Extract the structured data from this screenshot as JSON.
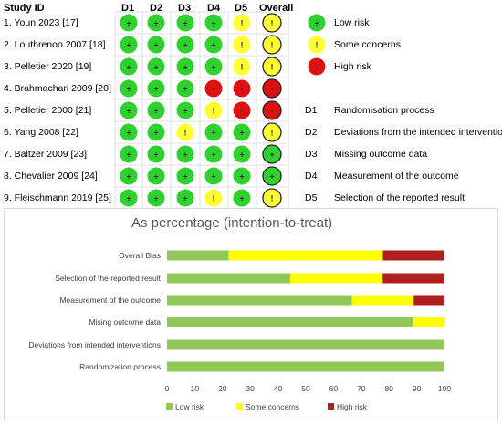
{
  "header": {
    "study_id": "Study ID",
    "domains": [
      "D1",
      "D2",
      "D3",
      "D4",
      "D5"
    ],
    "overall": "Overall"
  },
  "studies": [
    {
      "name": "1. Youn 2023 [17]",
      "judgements": [
        "low",
        "low",
        "low",
        "low",
        "some"
      ],
      "overall": "some"
    },
    {
      "name": "2. Louthrenoo 2007 [18]",
      "judgements": [
        "low",
        "low",
        "low",
        "low",
        "some"
      ],
      "overall": "some"
    },
    {
      "name": "3. Pelletier 2020 [19]",
      "judgements": [
        "low",
        "low",
        "low",
        "low",
        "some"
      ],
      "overall": "some"
    },
    {
      "name": "4. Brahmachari 2009 [20]",
      "judgements": [
        "low",
        "low",
        "low",
        "high",
        "high"
      ],
      "overall": "high"
    },
    {
      "name": "5. Pelletier 2000 [21]",
      "judgements": [
        "low",
        "low",
        "low",
        "some",
        "high"
      ],
      "overall": "high"
    },
    {
      "name": "6. Yang 2008 [22]",
      "judgements": [
        "low",
        "low",
        "some",
        "low",
        "low"
      ],
      "overall": "some"
    },
    {
      "name": "7. Baltzer 2009 [23]",
      "judgements": [
        "low",
        "low",
        "low",
        "low",
        "low"
      ],
      "overall": "low"
    },
    {
      "name": "8. Chevalier 2009 [24]",
      "judgements": [
        "low",
        "low",
        "low",
        "low",
        "low"
      ],
      "overall": "low"
    },
    {
      "name": "9. Fleischmann 2019 [25]",
      "judgements": [
        "low",
        "low",
        "low",
        "some",
        "low"
      ],
      "overall": "some"
    }
  ],
  "symbols": {
    "low": "+",
    "some": "!",
    "high": "-"
  },
  "colors": {
    "low": "#2ed12e",
    "some": "#ffff33",
    "high": "#dd1111",
    "bar_low": "#92c85a",
    "bar_some": "#ffff00",
    "bar_high": "#b01f1f"
  },
  "risk_legend": [
    {
      "key": "low",
      "label": "Low risk"
    },
    {
      "key": "some",
      "label": "Some concerns"
    },
    {
      "key": "high",
      "label": "High risk"
    }
  ],
  "domain_legend": [
    {
      "key": "D1",
      "label": "Randomisation process"
    },
    {
      "key": "D2",
      "label": "Deviations from the intended interventions"
    },
    {
      "key": "D3",
      "label": "Missing outcome data"
    },
    {
      "key": "D4",
      "label": "Measurement of the outcome"
    },
    {
      "key": "D5",
      "label": "Selection of the reported result"
    }
  ],
  "chart_data": {
    "type": "bar",
    "orientation": "horizontal",
    "stacked": true,
    "title": "As percentage (intention-to-treat)",
    "categories": [
      "Overall Bias",
      "Selection of the reported result",
      "Measurement of the outcome",
      "Mising outcome data",
      "Deviations from intended interventions",
      "Randomization process"
    ],
    "series": [
      {
        "name": "Low risk",
        "values": [
          22.2,
          44.4,
          66.7,
          88.9,
          100,
          100
        ]
      },
      {
        "name": "Some concerns",
        "values": [
          55.6,
          33.3,
          22.2,
          11.1,
          0,
          0
        ]
      },
      {
        "name": "High risk",
        "values": [
          22.2,
          22.2,
          11.1,
          0,
          0,
          0
        ]
      }
    ],
    "xlim": [
      0,
      100
    ],
    "xticks": [
      0,
      10,
      20,
      30,
      40,
      50,
      60,
      70,
      80,
      90,
      100
    ],
    "legend": "bottom"
  }
}
